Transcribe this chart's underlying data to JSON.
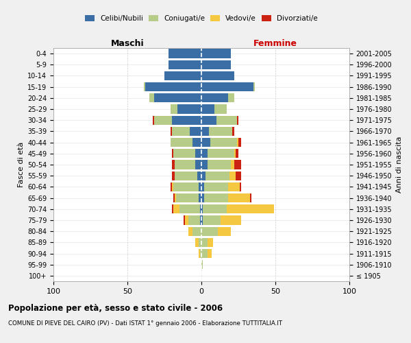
{
  "age_groups": [
    "100+",
    "95-99",
    "90-94",
    "85-89",
    "80-84",
    "75-79",
    "70-74",
    "65-69",
    "60-64",
    "55-59",
    "50-54",
    "45-49",
    "40-44",
    "35-39",
    "30-34",
    "25-29",
    "20-24",
    "15-19",
    "10-14",
    "5-9",
    "0-4"
  ],
  "birth_years": [
    "≤ 1905",
    "1906-1910",
    "1911-1915",
    "1916-1920",
    "1921-1925",
    "1926-1930",
    "1931-1935",
    "1936-1940",
    "1941-1945",
    "1946-1950",
    "1951-1955",
    "1956-1960",
    "1961-1965",
    "1966-1970",
    "1971-1975",
    "1976-1980",
    "1981-1985",
    "1986-1990",
    "1991-1995",
    "1996-2000",
    "2001-2005"
  ],
  "colors": {
    "celibi": "#3a6ea5",
    "coniugati": "#b8cc8a",
    "vedovi": "#f5c842",
    "divorziati": "#cc2211"
  },
  "male": {
    "celibi": [
      0,
      0,
      0,
      0,
      0,
      1,
      1,
      2,
      2,
      3,
      4,
      4,
      6,
      8,
      20,
      16,
      32,
      38,
      25,
      22,
      22
    ],
    "coniugati": [
      0,
      0,
      1,
      2,
      6,
      8,
      14,
      15,
      17,
      15,
      14,
      15,
      15,
      12,
      12,
      5,
      3,
      1,
      0,
      0,
      0
    ],
    "vedovi": [
      0,
      0,
      1,
      2,
      3,
      2,
      4,
      1,
      1,
      0,
      0,
      0,
      0,
      0,
      0,
      0,
      0,
      0,
      0,
      0,
      0
    ],
    "divorziati": [
      0,
      0,
      0,
      0,
      0,
      1,
      1,
      1,
      1,
      2,
      2,
      1,
      0,
      1,
      1,
      0,
      0,
      0,
      0,
      0,
      0
    ]
  },
  "female": {
    "nubili": [
      0,
      0,
      0,
      0,
      0,
      1,
      1,
      2,
      2,
      3,
      4,
      4,
      6,
      5,
      10,
      9,
      18,
      35,
      22,
      20,
      20
    ],
    "coniugate": [
      0,
      1,
      4,
      4,
      11,
      12,
      16,
      16,
      16,
      16,
      16,
      18,
      18,
      16,
      14,
      8,
      4,
      1,
      0,
      0,
      0
    ],
    "vedove": [
      0,
      0,
      3,
      4,
      9,
      14,
      32,
      15,
      8,
      4,
      2,
      1,
      1,
      0,
      0,
      0,
      0,
      0,
      0,
      0,
      0
    ],
    "divorziate": [
      0,
      0,
      0,
      0,
      0,
      0,
      0,
      1,
      1,
      4,
      5,
      2,
      2,
      1,
      1,
      0,
      0,
      0,
      0,
      0,
      0
    ]
  },
  "xlim": [
    -100,
    100
  ],
  "xticks": [
    -100,
    -50,
    0,
    50,
    100
  ],
  "xticklabels": [
    "100",
    "50",
    "0",
    "50",
    "100"
  ],
  "title": "Popolazione per età, sesso e stato civile - 2006",
  "subtitle": "COMUNE DI PIEVE DEL CAIRO (PV) - Dati ISTAT 1° gennaio 2006 - Elaborazione TUTTITALIA.IT",
  "ylabel": "Fasce di età",
  "ylabel_right": "Anni di nascita",
  "label_maschi": "Maschi",
  "label_femmine": "Femmine",
  "legend_labels": [
    "Celibi/Nubili",
    "Coniugati/e",
    "Vedovi/e",
    "Divorziati/e"
  ],
  "background_color": "#f0f0f0",
  "plot_background": "#ffffff"
}
